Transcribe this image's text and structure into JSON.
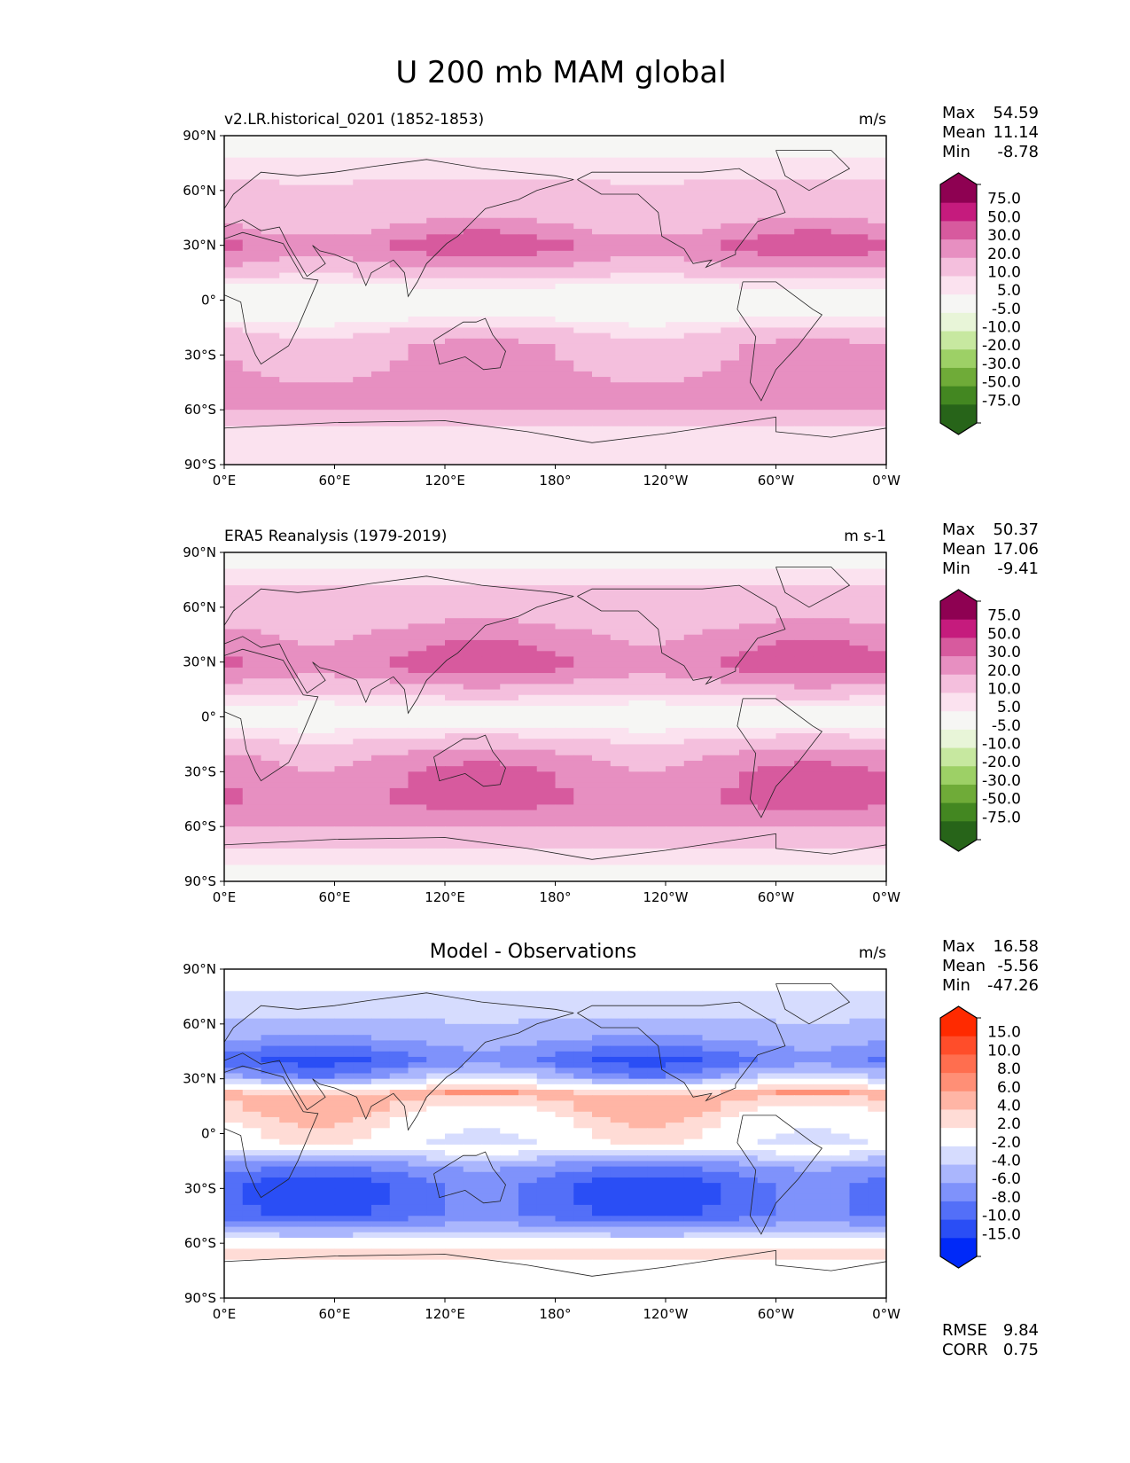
{
  "figure": {
    "title": "U 200 mb MAM global"
  },
  "chart_data": [
    {
      "type": "heatmap",
      "panel": "model",
      "title_left": "v2.LR.historical_0201 (1852-1853)",
      "title_center": "",
      "units": "m/s",
      "stats": [
        {
          "label": "Max",
          "value": "54.59"
        },
        {
          "label": "Mean",
          "value": "11.14"
        },
        {
          "label": "Min",
          "value": "-8.78"
        }
      ],
      "xlim": [
        0,
        360
      ],
      "ylim": [
        -90,
        90
      ],
      "xticks": [
        "0°E",
        "60°E",
        "120°E",
        "180°",
        "120°W",
        "60°W",
        "0°W"
      ],
      "yticks": [
        "90°N",
        "60°N",
        "30°N",
        "0°",
        "30°S",
        "60°S",
        "90°S"
      ],
      "colorbar": {
        "extend": "both",
        "levels": [
          "75.0",
          "50.0",
          "30.0",
          "20.0",
          "10.0",
          "5.0",
          "-5.0",
          "-10.0",
          "-20.0",
          "-30.0",
          "-50.0",
          "-75.0"
        ],
        "colors": [
          "#8e0152",
          "#c51b7d",
          "#d75a9e",
          "#e78fc1",
          "#f4bfdd",
          "#fbe2ef",
          "#f6f6f4",
          "#e8f5d8",
          "#c7e8a0",
          "#9dd066",
          "#6fab38",
          "#438721",
          "#276419"
        ]
      },
      "zonal_profile": [
        {
          "lat": 85,
          "value": 2
        },
        {
          "lat": 75,
          "value": 6
        },
        {
          "lat": 60,
          "value": 12
        },
        {
          "lat": 45,
          "value": 16
        },
        {
          "lat": 30,
          "value": 32
        },
        {
          "lat": 20,
          "value": 22
        },
        {
          "lat": 10,
          "value": 6
        },
        {
          "lat": 0,
          "value": 1
        },
        {
          "lat": -10,
          "value": 4
        },
        {
          "lat": -25,
          "value": 18
        },
        {
          "lat": -40,
          "value": 22
        },
        {
          "lat": -50,
          "value": 26
        },
        {
          "lat": -60,
          "value": 20
        },
        {
          "lat": -70,
          "value": 10
        },
        {
          "lat": -85,
          "value": 6
        }
      ]
    },
    {
      "type": "heatmap",
      "panel": "observations",
      "title_left": "ERA5 Reanalysis (1979-2019)",
      "title_center": "",
      "units": "m s-1",
      "stats": [
        {
          "label": "Max",
          "value": "50.37"
        },
        {
          "label": "Mean",
          "value": "17.06"
        },
        {
          "label": "Min",
          "value": "-9.41"
        }
      ],
      "xlim": [
        0,
        360
      ],
      "ylim": [
        -90,
        90
      ],
      "xticks": [
        "0°E",
        "60°E",
        "120°E",
        "180°",
        "120°W",
        "60°W",
        "0°W"
      ],
      "yticks": [
        "90°N",
        "60°N",
        "30°N",
        "0°",
        "30°S",
        "60°S",
        "90°S"
      ],
      "colorbar": {
        "extend": "both",
        "levels": [
          "75.0",
          "50.0",
          "30.0",
          "20.0",
          "10.0",
          "5.0",
          "-5.0",
          "-10.0",
          "-20.0",
          "-30.0",
          "-50.0",
          "-75.0"
        ],
        "colors": [
          "#8e0152",
          "#c51b7d",
          "#d75a9e",
          "#e78fc1",
          "#f4bfdd",
          "#fbe2ef",
          "#f6f6f4",
          "#e8f5d8",
          "#c7e8a0",
          "#9dd066",
          "#6fab38",
          "#438721",
          "#276419"
        ]
      },
      "zonal_profile": [
        {
          "lat": 88,
          "value": 2
        },
        {
          "lat": 75,
          "value": 8
        },
        {
          "lat": 60,
          "value": 15
        },
        {
          "lat": 45,
          "value": 22
        },
        {
          "lat": 30,
          "value": 33
        },
        {
          "lat": 20,
          "value": 22
        },
        {
          "lat": 10,
          "value": 8
        },
        {
          "lat": 0,
          "value": 0
        },
        {
          "lat": -10,
          "value": 8
        },
        {
          "lat": -22,
          "value": 22
        },
        {
          "lat": -32,
          "value": 28
        },
        {
          "lat": -45,
          "value": 32
        },
        {
          "lat": -55,
          "value": 25
        },
        {
          "lat": -65,
          "value": 16
        },
        {
          "lat": -75,
          "value": 8
        },
        {
          "lat": -88,
          "value": 2
        }
      ]
    },
    {
      "type": "heatmap",
      "panel": "difference",
      "title_left": "",
      "title_center": "Model - Observations",
      "units": "m/s",
      "stats": [
        {
          "label": "Max",
          "value": "16.58"
        },
        {
          "label": "Mean",
          "value": "-5.56"
        },
        {
          "label": "Min",
          "value": "-47.26"
        }
      ],
      "extra_stats": [
        {
          "label": "RMSE",
          "value": "9.84"
        },
        {
          "label": "CORR",
          "value": "0.75"
        }
      ],
      "xlim": [
        0,
        360
      ],
      "ylim": [
        -90,
        90
      ],
      "xticks": [
        "0°E",
        "60°E",
        "120°E",
        "180°",
        "120°W",
        "60°W",
        "0°W"
      ],
      "yticks": [
        "90°N",
        "60°N",
        "30°N",
        "0°",
        "30°S",
        "60°S",
        "90°S"
      ],
      "colorbar": {
        "extend": "both",
        "levels": [
          "15.0",
          "10.0",
          "8.0",
          "6.0",
          "4.0",
          "2.0",
          "-2.0",
          "-4.0",
          "-6.0",
          "-8.0",
          "-10.0",
          "-15.0"
        ],
        "colors": [
          "#ff2a00",
          "#ff4d2a",
          "#ff6e4f",
          "#ff8f76",
          "#ffb5a5",
          "#ffdcd6",
          "#ffffff",
          "#d6dcfe",
          "#aab6fd",
          "#7f92fb",
          "#536ff8",
          "#2a4ef5",
          "#0029f8"
        ]
      },
      "zonal_profile": [
        {
          "lat": 85,
          "value": -1
        },
        {
          "lat": 70,
          "value": -3
        },
        {
          "lat": 55,
          "value": -5
        },
        {
          "lat": 40,
          "value": -9
        },
        {
          "lat": 30,
          "value": -5
        },
        {
          "lat": 22,
          "value": 5
        },
        {
          "lat": 12,
          "value": 3
        },
        {
          "lat": 3,
          "value": 1
        },
        {
          "lat": -8,
          "value": -1
        },
        {
          "lat": -18,
          "value": -7
        },
        {
          "lat": -30,
          "value": -10
        },
        {
          "lat": -45,
          "value": -9
        },
        {
          "lat": -55,
          "value": -4
        },
        {
          "lat": -65,
          "value": 3
        },
        {
          "lat": -75,
          "value": 1
        },
        {
          "lat": -88,
          "value": 0
        }
      ]
    }
  ]
}
